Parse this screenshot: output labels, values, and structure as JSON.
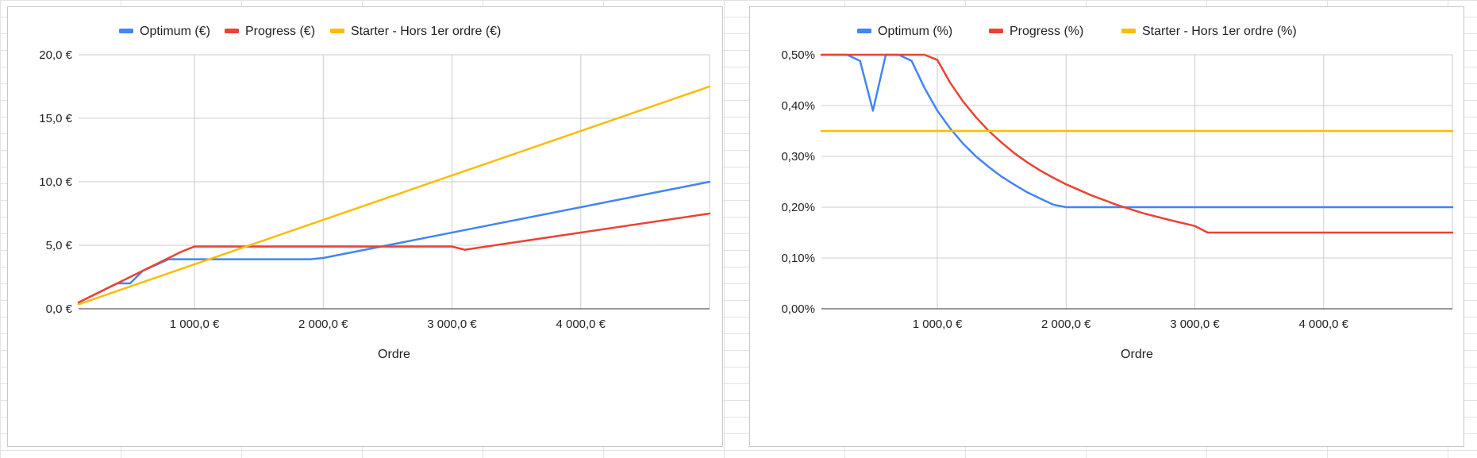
{
  "chart_data": [
    {
      "type": "line",
      "xlabel": "Ordre",
      "ylabel": "",
      "legend_position": "top",
      "grid": true,
      "xlim": [
        100,
        5000
      ],
      "ylim": [
        0,
        20
      ],
      "x_ticks": [
        1000,
        2000,
        3000,
        4000
      ],
      "x_tick_labels": [
        "1 000,0 €",
        "2 000,0 €",
        "3 000,0 €",
        "4 000,0 €"
      ],
      "y_ticks": [
        0,
        5,
        10,
        15,
        20
      ],
      "y_tick_labels": [
        "0,0 €",
        "5,0 €",
        "10,0 €",
        "15,0 €",
        "20,0 €"
      ],
      "series": [
        {
          "name": "Optimum (€)",
          "color": "#4285f4",
          "points": [
            [
              100,
              0.5
            ],
            [
              400,
              2.0
            ],
            [
              500,
              2.0
            ],
            [
              600,
              3.0
            ],
            [
              800,
              3.9
            ],
            [
              1000,
              3.9
            ],
            [
              1900,
              3.9
            ],
            [
              2000,
              4.0
            ],
            [
              5000,
              10.0
            ]
          ]
        },
        {
          "name": "Progress (€)",
          "color": "#ea4335",
          "points": [
            [
              100,
              0.5
            ],
            [
              900,
              4.5
            ],
            [
              1000,
              4.9
            ],
            [
              3000,
              4.9
            ],
            [
              3100,
              4.65
            ],
            [
              5000,
              7.5
            ]
          ]
        },
        {
          "name": "Starter - Hors 1er ordre (€)",
          "color": "#fbbc04",
          "points": [
            [
              100,
              0.35
            ],
            [
              5000,
              17.5
            ]
          ]
        }
      ]
    },
    {
      "type": "line",
      "xlabel": "Ordre",
      "ylabel": "",
      "legend_position": "top",
      "grid": true,
      "xlim": [
        100,
        5000
      ],
      "ylim": [
        0,
        0.5
      ],
      "x_ticks": [
        1000,
        2000,
        3000,
        4000
      ],
      "x_tick_labels": [
        "1 000,0 €",
        "2 000,0 €",
        "3 000,0 €",
        "4 000,0 €"
      ],
      "y_ticks": [
        0,
        0.1,
        0.2,
        0.3,
        0.4,
        0.5
      ],
      "y_tick_labels": [
        "0,00%",
        "0,10%",
        "0,20%",
        "0,30%",
        "0,40%",
        "0,50%"
      ],
      "series": [
        {
          "name": "Optimum (%)",
          "color": "#4285f4",
          "points": [
            [
              100,
              0.5
            ],
            [
              300,
              0.5
            ],
            [
              400,
              0.488
            ],
            [
              500,
              0.39
            ],
            [
              600,
              0.5
            ],
            [
              700,
              0.5
            ],
            [
              800,
              0.488
            ],
            [
              900,
              0.435
            ],
            [
              1000,
              0.39
            ],
            [
              1100,
              0.355
            ],
            [
              1200,
              0.325
            ],
            [
              1300,
              0.3
            ],
            [
              1400,
              0.279
            ],
            [
              1500,
              0.26
            ],
            [
              1600,
              0.244
            ],
            [
              1700,
              0.229
            ],
            [
              1800,
              0.217
            ],
            [
              1900,
              0.205
            ],
            [
              2000,
              0.2
            ],
            [
              5000,
              0.2
            ]
          ]
        },
        {
          "name": "Progress (%)",
          "color": "#ea4335",
          "points": [
            [
              100,
              0.5
            ],
            [
              900,
              0.5
            ],
            [
              1000,
              0.49
            ],
            [
              1100,
              0.445
            ],
            [
              1200,
              0.408
            ],
            [
              1300,
              0.377
            ],
            [
              1400,
              0.35
            ],
            [
              1500,
              0.327
            ],
            [
              1600,
              0.306
            ],
            [
              1700,
              0.288
            ],
            [
              1800,
              0.272
            ],
            [
              1900,
              0.258
            ],
            [
              2000,
              0.245
            ],
            [
              2200,
              0.223
            ],
            [
              2400,
              0.204
            ],
            [
              2600,
              0.188
            ],
            [
              2800,
              0.175
            ],
            [
              3000,
              0.163
            ],
            [
              3100,
              0.15
            ],
            [
              5000,
              0.15
            ]
          ]
        },
        {
          "name": "Starter - Hors 1er ordre (%)",
          "color": "#fbbc04",
          "points": [
            [
              100,
              0.35
            ],
            [
              5000,
              0.35
            ]
          ]
        }
      ]
    }
  ]
}
